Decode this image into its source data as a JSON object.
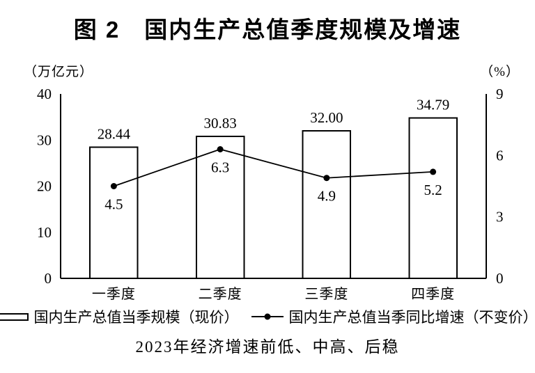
{
  "chart_data": {
    "type": "combo-bar-line",
    "title": "图 2　国内生产总值季度规模及增速",
    "caption": "2023年经济增速前低、中高、后稳",
    "categories": [
      "一季度",
      "二季度",
      "三季度",
      "四季度"
    ],
    "series": [
      {
        "name": "国内生产总值当季规模（现价）",
        "type": "bar",
        "axis": "left",
        "values": [
          28.44,
          30.83,
          32.0,
          34.79
        ],
        "labels": [
          "28.44",
          "30.83",
          "32.00",
          "34.79"
        ]
      },
      {
        "name": "国内生产总值当季同比增速（不变价）",
        "type": "line",
        "axis": "right",
        "values": [
          4.5,
          6.3,
          4.9,
          5.2
        ],
        "labels": [
          "4.5",
          "6.3",
          "4.9",
          "5.2"
        ]
      }
    ],
    "left_axis": {
      "unit": "（万亿元）",
      "ticks": [
        "0",
        "10",
        "20",
        "30",
        "40"
      ],
      "min": 0,
      "max": 40
    },
    "right_axis": {
      "unit": "（%）",
      "ticks": [
        "0",
        "3",
        "6",
        "9"
      ],
      "min": 0,
      "max": 9
    },
    "grid": false,
    "legend_position": "bottom",
    "colors": {
      "ink": "#000000",
      "bar_fill": "#ffffff"
    }
  }
}
